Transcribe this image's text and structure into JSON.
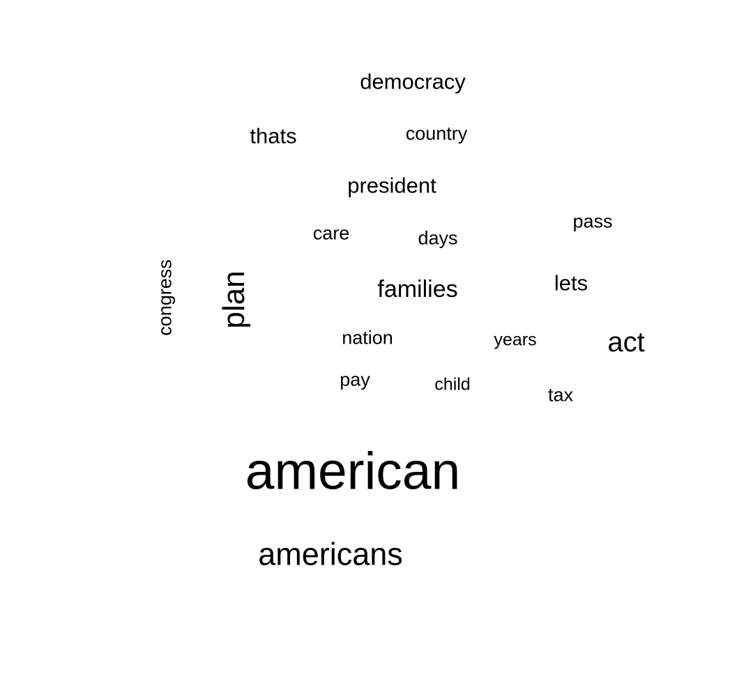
{
  "word_cloud": {
    "words": [
      {
        "text": "democracy",
        "color": "#000000"
      },
      {
        "text": "thats",
        "color": "#000000"
      },
      {
        "text": "country",
        "color": "#000000"
      },
      {
        "text": "president",
        "color": "#000000"
      },
      {
        "text": "care",
        "color": "#000000"
      },
      {
        "text": "days",
        "color": "#000000"
      },
      {
        "text": "pass",
        "color": "#000000"
      },
      {
        "text": "congress",
        "color": "#000000"
      },
      {
        "text": "plan",
        "color": "#000000"
      },
      {
        "text": "families",
        "color": "#000000"
      },
      {
        "text": "lets",
        "color": "#000000"
      },
      {
        "text": "nation",
        "color": "#000000"
      },
      {
        "text": "years",
        "color": "#000000"
      },
      {
        "text": "act",
        "color": "#000000"
      },
      {
        "text": "pay",
        "color": "#000000"
      },
      {
        "text": "child",
        "color": "#000000"
      },
      {
        "text": "tax",
        "color": "#000000"
      },
      {
        "text": "american",
        "color": "#000000"
      },
      {
        "text": "americans",
        "color": "#000000"
      }
    ]
  }
}
